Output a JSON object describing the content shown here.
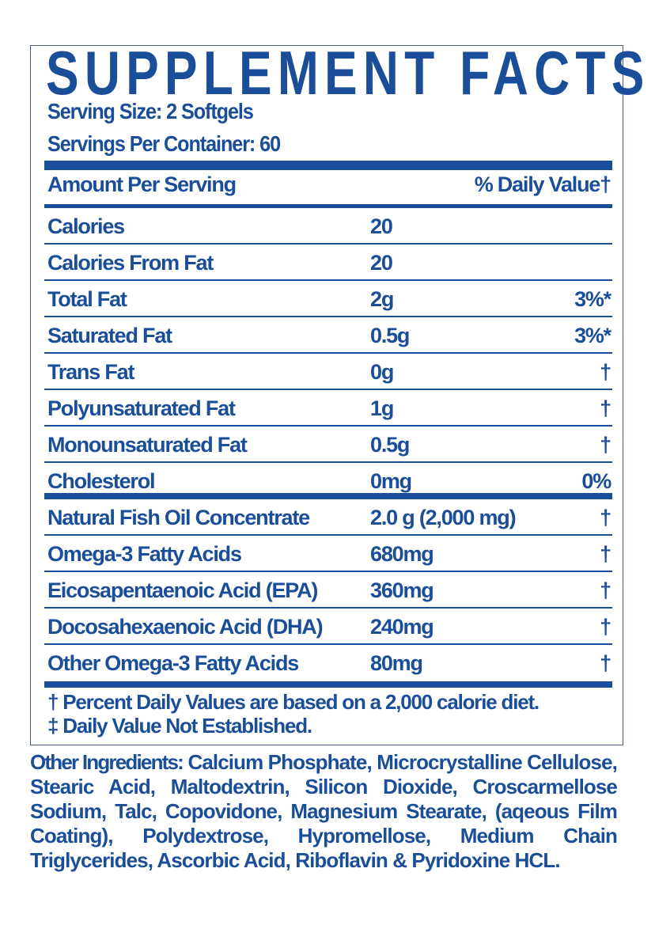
{
  "title": "SUPPLEMENT FACTS",
  "serving_size": "Serving Size: 2 Softgels",
  "servings_per_container": "Servings Per Container: 60",
  "header": {
    "amount": "Amount Per Serving",
    "dv": "% Daily Value†"
  },
  "rows": [
    {
      "name": "Calories",
      "amount": "20",
      "dv": ""
    },
    {
      "name": "Calories From Fat",
      "amount": "20",
      "dv": ""
    },
    {
      "name": "Total Fat",
      "amount": "2g",
      "dv": "3%*"
    },
    {
      "name": "Saturated Fat",
      "amount": "0.5g",
      "dv": "3%*"
    },
    {
      "name": "Trans Fat",
      "amount": "0g",
      "dv": "†"
    },
    {
      "name": "Polyunsaturated Fat",
      "amount": "1g",
      "dv": "†"
    },
    {
      "name": "Monounsaturated Fat",
      "amount": "0.5g",
      "dv": "†"
    },
    {
      "name": "Cholesterol",
      "amount": "0mg",
      "dv": "0%"
    },
    {
      "name": "Natural Fish Oil Concentrate",
      "amount": "2.0 g (2,000 mg)",
      "dv": "†"
    },
    {
      "name": "Omega-3 Fatty Acids",
      "amount": "680mg",
      "dv": "†"
    },
    {
      "name": "Eicosapentaenoic Acid (EPA)",
      "amount": "360mg",
      "dv": "†"
    },
    {
      "name": "Docosahexaenoic Acid (DHA)",
      "amount": "240mg",
      "dv": "†"
    },
    {
      "name": "Other Omega-3 Fatty Acids",
      "amount": "80mg",
      "dv": "†"
    }
  ],
  "footnotes": [
    "† Percent Daily Values are based on a 2,000 calorie diet.",
    "‡ Daily Value Not Established."
  ],
  "other_ingredients": {
    "label": "Other Ingredients:",
    "text": "Calcium Phosphate, Microcrystalline Cellulose, Stearic Acid, Maltodextrin, Silicon Dioxide, Croscarmellose Sodium, Talc, Copovidone, Magnesium Stearate, (aqeous Film Coating), Polydextrose, Hypromellose, Medium Chain Triglycerides, Ascorbic Acid, Riboflavin & Pyridoxine HCL."
  },
  "colors": {
    "text": "#1b4e99",
    "background": "#ffffff"
  }
}
